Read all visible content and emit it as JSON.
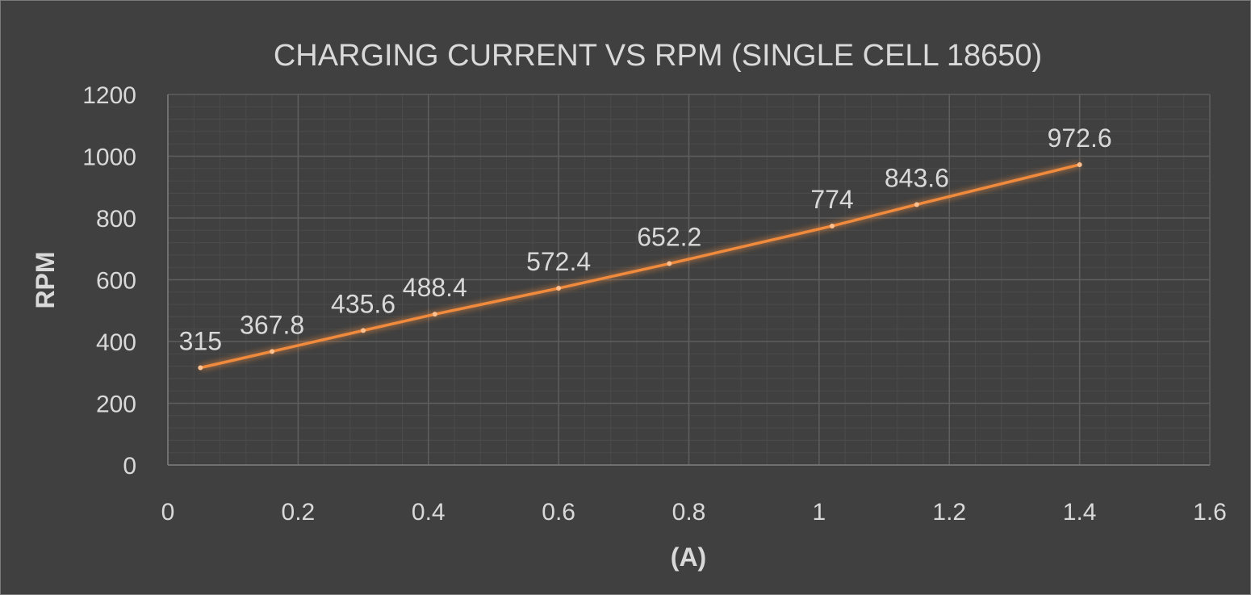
{
  "chart_data": {
    "type": "line",
    "title": "CHARGING CURRENT VS RPM (SINGLE CELL 18650)",
    "xlabel": "(A)",
    "ylabel": "RPM",
    "xlim": [
      0,
      1.6
    ],
    "ylim": [
      0,
      1200
    ],
    "x_ticks": [
      "0",
      "0.2",
      "0.4",
      "0.6",
      "0.8",
      "1",
      "1.2",
      "1.4",
      "1.6"
    ],
    "y_ticks": [
      "0",
      "200",
      "400",
      "600",
      "800",
      "1000",
      "1200"
    ],
    "grid": "major and minor",
    "legend": "none",
    "series": [
      {
        "x": [
          0.05,
          0.16,
          0.3,
          0.41,
          0.6,
          0.77,
          1.02,
          1.15,
          1.4
        ],
        "y": [
          315,
          367.8,
          435.6,
          488.4,
          572.4,
          652.2,
          774,
          843.6,
          972.6
        ],
        "labels": [
          "315",
          "367.8",
          "435.6",
          "488.4",
          "572.4",
          "652.2",
          "774",
          "843.6",
          "972.6"
        ]
      }
    ],
    "colors": {
      "background": "#404040",
      "line": "#f08a3c",
      "grid_major": "#5e5e5e",
      "grid_minor": "#4b4b4b",
      "text": "#d9d9d9"
    }
  }
}
